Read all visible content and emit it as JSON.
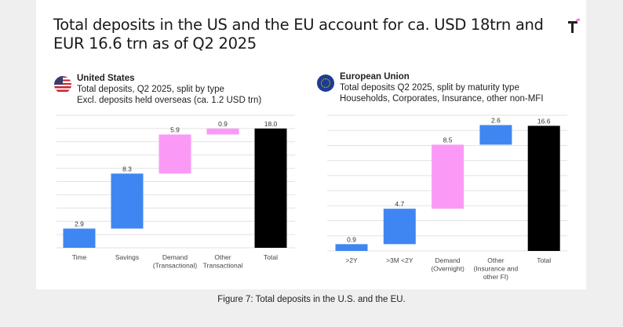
{
  "title": "Total deposits in the US and the EU account for ca. USD 18trn and EUR 16.6 trn as of Q2 2025",
  "caption": "Figure 7: Total deposits in the U.S. and the EU.",
  "colors": {
    "blue": "#3f86f2",
    "pink": "#fa9af6",
    "total": "#000000",
    "grid": "#e2e2e2"
  },
  "chart_data": [
    {
      "type": "bar",
      "subtype": "waterfall",
      "region": "United States",
      "subtitle": "Total deposits, Q2 2025, split by type",
      "note": "Excl. deposits held overseas (ca. 1.2 USD trn)",
      "categories": [
        [
          "Time"
        ],
        [
          "Savings"
        ],
        [
          "Demand",
          "(Transactional)"
        ],
        [
          "Other",
          "Transactional"
        ],
        [
          "Total"
        ]
      ],
      "values": [
        2.9,
        8.3,
        5.9,
        0.9,
        18.0
      ],
      "labels": [
        "2.9",
        "8.3",
        "5.9",
        "0.9",
        "18.0"
      ],
      "bar_colors": [
        "blue",
        "blue",
        "pink",
        "pink",
        "total"
      ],
      "is_total": [
        false,
        false,
        false,
        false,
        true
      ],
      "ylim": [
        0,
        20
      ],
      "grid_step": 2,
      "grid": true
    },
    {
      "type": "bar",
      "subtype": "waterfall",
      "region": "European Union",
      "subtitle": "Total deposits Q2 2025, split by maturity type",
      "note": "Households, Corporates, Insurance, other non-MFI",
      "categories": [
        [
          ">2Y"
        ],
        [
          ">3M <2Y"
        ],
        [
          "Demand",
          "(Overnight)"
        ],
        [
          "Other",
          "(Insurance and",
          "other FI)"
        ],
        [
          "Total"
        ]
      ],
      "values": [
        0.9,
        4.7,
        8.5,
        2.6,
        16.6
      ],
      "labels": [
        "0.9",
        "4.7",
        "8.5",
        "2.6",
        "16.6"
      ],
      "bar_colors": [
        "blue",
        "blue",
        "pink",
        "blue",
        "total"
      ],
      "is_total": [
        false,
        false,
        false,
        false,
        true
      ],
      "ylim": [
        0,
        18
      ],
      "grid_step": 2,
      "grid": true
    }
  ]
}
